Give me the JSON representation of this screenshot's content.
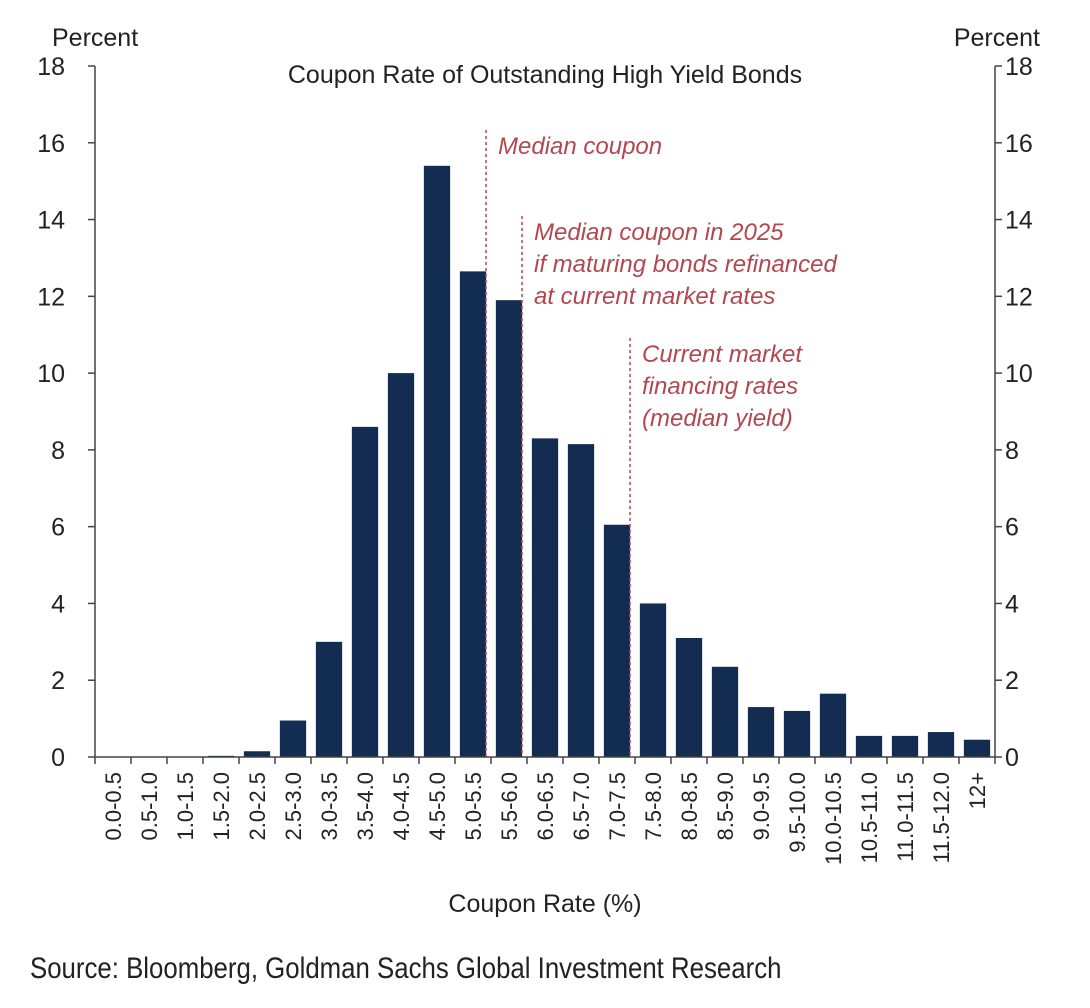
{
  "colors": {
    "bar": "#132c52",
    "annotation": "#b3474f",
    "axis": "#444444"
  },
  "source_text": "Source: Bloomberg, Goldman Sachs Global Investment Research",
  "chart_data": {
    "type": "bar",
    "title": "Coupon Rate of Outstanding High Yield Bonds",
    "xlabel": "Coupon Rate (%)",
    "ylabel_left": "Percent",
    "ylabel_right": "Percent",
    "ylim": [
      0,
      18
    ],
    "yticks": [
      0,
      2,
      4,
      6,
      8,
      10,
      12,
      14,
      16,
      18
    ],
    "grid": false,
    "categories": [
      "0.0-0.5",
      "0.5-1.0",
      "1.0-1.5",
      "1.5-2.0",
      "2.0-2.5",
      "2.5-3.0",
      "3.0-3.5",
      "3.5-4.0",
      "4.0-4.5",
      "4.5-5.0",
      "5.0-5.5",
      "5.5-6.0",
      "6.0-6.5",
      "6.5-7.0",
      "7.0-7.5",
      "7.5-8.0",
      "8.0-8.5",
      "8.5-9.0",
      "9.0-9.5",
      "9.5-10.0",
      "10.0-10.5",
      "10.5-11.0",
      "11.0-11.5",
      "11.5-12.0",
      "12+"
    ],
    "values": [
      0,
      0,
      0,
      0.03,
      0.15,
      0.95,
      3.0,
      8.6,
      10.0,
      15.4,
      12.65,
      11.9,
      8.3,
      8.15,
      6.05,
      4.0,
      3.1,
      2.35,
      1.3,
      1.2,
      1.65,
      0.55,
      0.55,
      0.65,
      0.45
    ],
    "annotations": [
      {
        "at_category": 11,
        "edge": "left",
        "lines": [
          "Median coupon"
        ]
      },
      {
        "at_category": 12,
        "edge": "left",
        "lines": [
          "Median coupon in 2025",
          "if maturing bonds refinanced",
          "at current market rates"
        ]
      },
      {
        "at_category": 15,
        "edge": "left",
        "lines": [
          "Current market",
          "financing rates",
          "(median yield)"
        ]
      }
    ]
  }
}
